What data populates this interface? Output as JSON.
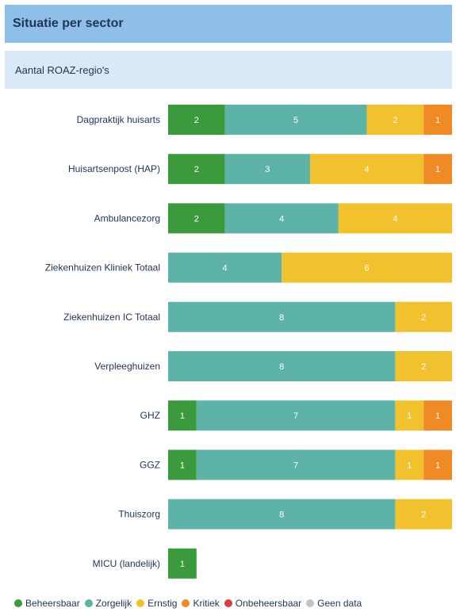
{
  "header": {
    "title": "Situatie per sector",
    "subtitle": "Aantal ROAZ-regio's"
  },
  "colors": {
    "Beheersbaar": "#3b9a3b",
    "Zorgelijk": "#5db3a7",
    "Ernstig": "#f2c12e",
    "Kritiek": "#ef8a24",
    "Onbeheersbaar": "#d93f3f",
    "Geen data": "#c4c4c4"
  },
  "chart_data": {
    "type": "bar",
    "orientation": "horizontal",
    "stacked": true,
    "title": "Situatie per sector",
    "subtitle": "Aantal ROAZ-regio's",
    "categories": [
      "Dagpraktijk huisarts",
      "Huisartsenpost (HAP)",
      "Ambulancezorg",
      "Ziekenhuizen Kliniek Totaal",
      "Ziekenhuizen IC Totaal",
      "Verpleeghuizen",
      "GHZ",
      "GGZ",
      "Thuiszorg",
      "MICU (landelijk)"
    ],
    "series": [
      {
        "name": "Beheersbaar",
        "values": [
          2,
          2,
          2,
          0,
          0,
          0,
          1,
          1,
          0,
          1
        ]
      },
      {
        "name": "Zorgelijk",
        "values": [
          5,
          3,
          4,
          4,
          8,
          8,
          7,
          7,
          8,
          0
        ]
      },
      {
        "name": "Ernstig",
        "values": [
          2,
          4,
          4,
          6,
          2,
          2,
          1,
          1,
          2,
          0
        ]
      },
      {
        "name": "Kritiek",
        "values": [
          1,
          1,
          0,
          0,
          0,
          0,
          1,
          1,
          0,
          0
        ]
      },
      {
        "name": "Onbeheersbaar",
        "values": [
          0,
          0,
          0,
          0,
          0,
          0,
          0,
          0,
          0,
          0
        ]
      },
      {
        "name": "Geen data",
        "values": [
          0,
          0,
          0,
          0,
          0,
          0,
          0,
          0,
          0,
          0
        ]
      }
    ],
    "legend": [
      "Beheersbaar",
      "Zorgelijk",
      "Ernstig",
      "Kritiek",
      "Onbeheersbaar",
      "Geen data"
    ],
    "legend_position": "bottom",
    "grid": false,
    "xlabel": "",
    "ylabel": ""
  }
}
